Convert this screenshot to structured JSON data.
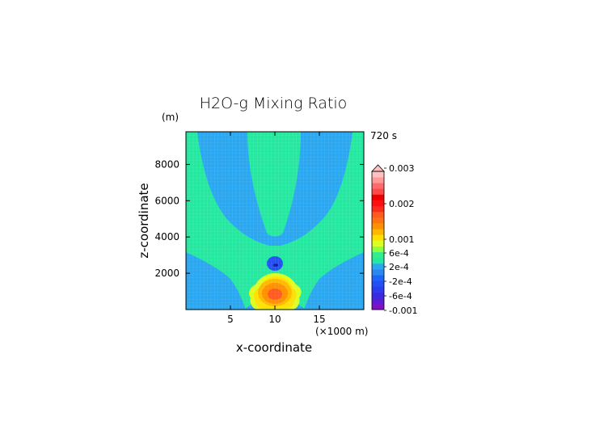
{
  "chart_data": {
    "type": "heatmap",
    "title": "H2O-g Mixing Ratio",
    "time_label": "720 s",
    "xlabel": "x-coordinate",
    "x_unit_label": "(×1000 m)",
    "ylabel": "z-coordinate",
    "y_unit_label": "(m)",
    "xlim": [
      0,
      20
    ],
    "ylim": [
      0,
      9800
    ],
    "x_ticks": [
      5,
      10,
      15
    ],
    "y_ticks": [
      2000,
      4000,
      6000,
      8000
    ],
    "grid": true,
    "legend_position": "right",
    "colorbar": {
      "ticks": [
        "0.003",
        "0.002",
        "0.001",
        "6e-4",
        "2e-4",
        "-2e-4",
        "-6e-4",
        "-0.001"
      ],
      "colors": [
        "#7d10c8",
        "#5a1ed6",
        "#3a2be0",
        "#2a3df0",
        "#2350f5",
        "#1e64fa",
        "#2a88f0",
        "#2aa7f0",
        "#25e8a0",
        "#30ee90",
        "#8cff40",
        "#dcff20",
        "#ffe000",
        "#ffb800",
        "#ff9000",
        "#ff7410",
        "#ff5a20",
        "#ff2a1e",
        "#ff1010",
        "#ee0000",
        "#ff4848",
        "#ff6a6a",
        "#ff9a9a",
        "#ffc0c0"
      ]
    },
    "fields": {
      "background": "#2aa7f0",
      "tongues": "#25e8a0",
      "plume_outer": "#dcff20",
      "plume_yellow": "#ffe000",
      "plume_orange": "#ffb800",
      "plume_dark_orange": "#ff9000",
      "plume_core": "#ff5a20",
      "bubble_outer": "#2350f5",
      "bubble_core": "#0a20a0"
    }
  }
}
